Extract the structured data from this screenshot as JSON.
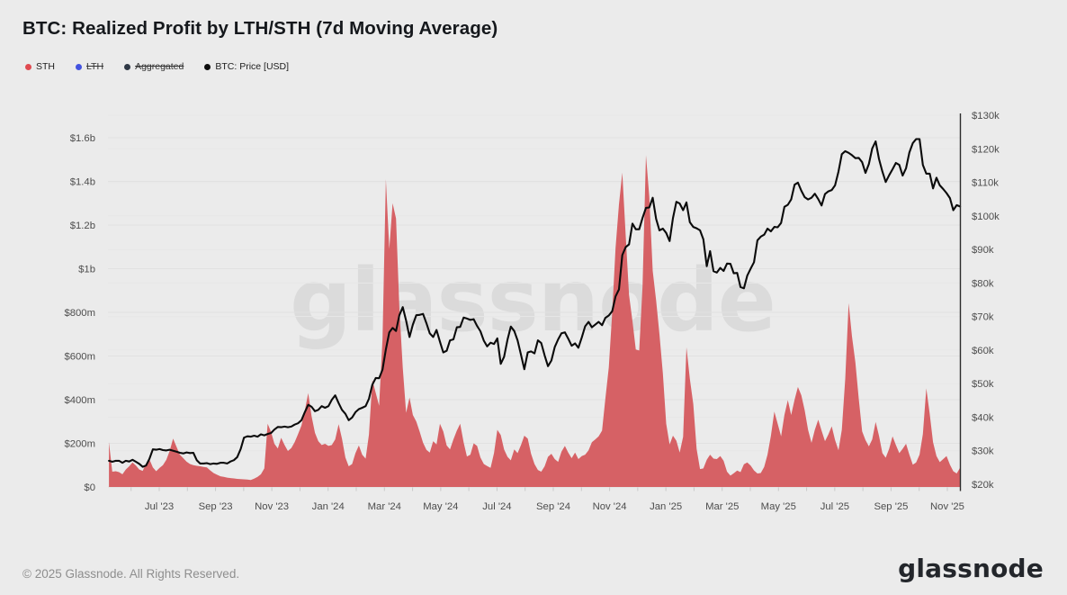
{
  "title": "BTC: Realized Profit by LTH/STH (7d Moving Average)",
  "watermark": "glassnode",
  "legend": {
    "items": [
      {
        "label": "STH",
        "color": "#e04a50",
        "struck": false
      },
      {
        "label": "LTH",
        "color": "#4353e0",
        "struck": true
      },
      {
        "label": "Aggregated",
        "color": "#2f3845",
        "struck": true
      },
      {
        "label": "BTC: Price [USD]",
        "color": "#0d0d0d",
        "struck": false
      }
    ]
  },
  "footer": {
    "copyright": "© 2025 Glassnode. All Rights Reserved.",
    "logo_text": "glassnode"
  },
  "colors": {
    "background": "#ebebeb",
    "sth_fill": "#d66165",
    "price_line": "#0b0b0b",
    "grid_left": "#e1e1e1",
    "grid_right": "#e7e7e7",
    "baseline": "#dcdcdc",
    "tick": "#c9c9c9",
    "axis_text": "#4d4d4d",
    "watermark": "#dbdbdb",
    "right_spine": "#2b2b2b"
  },
  "chart_data": {
    "type": "area",
    "title": "BTC: Realized Profit by LTH/STH (7d Moving Average)",
    "x_unit": "decimal_year",
    "t0": 2023.351,
    "dt": 0.01,
    "x_range": [
      2023.351,
      2025.871
    ],
    "grid": true,
    "legend_position": "top-left",
    "x_ticks": [
      {
        "label": "Jul '23",
        "t": 2023.5
      },
      {
        "label": "Sep '23",
        "t": 2023.6667
      },
      {
        "label": "Nov '23",
        "t": 2023.8333
      },
      {
        "label": "Jan '24",
        "t": 2024.0
      },
      {
        "label": "Mar '24",
        "t": 2024.1667
      },
      {
        "label": "May '24",
        "t": 2024.3333
      },
      {
        "label": "Jul '24",
        "t": 2024.5
      },
      {
        "label": "Sep '24",
        "t": 2024.6667
      },
      {
        "label": "Nov '24",
        "t": 2024.8333
      },
      {
        "label": "Jan '25",
        "t": 2025.0
      },
      {
        "label": "Mar '25",
        "t": 2025.1667
      },
      {
        "label": "May '25",
        "t": 2025.3333
      },
      {
        "label": "Jul '25",
        "t": 2025.5
      },
      {
        "label": "Sep '25",
        "t": 2025.6667
      },
      {
        "label": "Nov '25",
        "t": 2025.8333
      }
    ],
    "left_axis": {
      "unit": "USD millions",
      "ylim": [
        0,
        1711
      ],
      "ticks": [
        {
          "label": "$1.6b",
          "value": 1600
        },
        {
          "label": "$1.4b",
          "value": 1400
        },
        {
          "label": "$1.2b",
          "value": 1200
        },
        {
          "label": "$1b",
          "value": 1000
        },
        {
          "label": "$800m",
          "value": 800
        },
        {
          "label": "$600m",
          "value": 600
        },
        {
          "label": "$400m",
          "value": 400
        },
        {
          "label": "$200m",
          "value": 200
        },
        {
          "label": "$0",
          "value": 0
        }
      ]
    },
    "right_axis": {
      "unit": "USD thousands",
      "ylim": [
        20,
        130.6
      ],
      "ticks": [
        {
          "label": "$130k",
          "value": 130
        },
        {
          "label": "$120k",
          "value": 120
        },
        {
          "label": "$110k",
          "value": 110
        },
        {
          "label": "$100k",
          "value": 100
        },
        {
          "label": "$90k",
          "value": 90
        },
        {
          "label": "$80k",
          "value": 80
        },
        {
          "label": "$70k",
          "value": 70
        },
        {
          "label": "$60k",
          "value": 60
        },
        {
          "label": "$50k",
          "value": 50
        },
        {
          "label": "$40k",
          "value": 40
        },
        {
          "label": "$30k",
          "value": 30
        },
        {
          "label": "$20k",
          "value": 20
        }
      ]
    },
    "series": [
      {
        "name": "STH",
        "kind": "area",
        "axis": "left",
        "color": "#d66165",
        "unit": "USD millions",
        "values": [
          205,
          70,
          72,
          68,
          58,
          80,
          95,
          112,
          98,
          80,
          74,
          108,
          127,
          90,
          72,
          88,
          100,
          125,
          165,
          222,
          185,
          148,
          132,
          116,
          105,
          100,
          97,
          95,
          92,
          90,
          76,
          64,
          56,
          49,
          46,
          43,
          41,
          39,
          37,
          36,
          35,
          34,
          32,
          38,
          46,
          58,
          85,
          290,
          252,
          198,
          176,
          225,
          192,
          165,
          178,
          205,
          242,
          282,
          350,
          430,
          325,
          248,
          210,
          192,
          198,
          188,
          192,
          218,
          288,
          222,
          135,
          95,
          105,
          155,
          190,
          148,
          130,
          240,
          490,
          430,
          372,
          680,
          1410,
          1090,
          1300,
          1230,
          820,
          545,
          340,
          410,
          330,
          300,
          253,
          203,
          170,
          158,
          210,
          195,
          290,
          255,
          190,
          172,
          218,
          258,
          290,
          205,
          140,
          148,
          200,
          188,
          135,
          105,
          96,
          88,
          155,
          262,
          238,
          172,
          138,
          122,
          172,
          155,
          192,
          235,
          222,
          152,
          105,
          78,
          70,
          95,
          138,
          152,
          128,
          115,
          162,
          188,
          158,
          132,
          158,
          128,
          142,
          148,
          168,
          205,
          218,
          232,
          258,
          405,
          548,
          800,
          1095,
          1295,
          1440,
          1150,
          880,
          760,
          630,
          625,
          920,
          1520,
          1330,
          990,
          855,
          700,
          520,
          290,
          195,
          235,
          212,
          158,
          230,
          640,
          495,
          380,
          175,
          82,
          85,
          125,
          148,
          130,
          128,
          142,
          120,
          70,
          52,
          63,
          75,
          68,
          104,
          112,
          98,
          76,
          62,
          64,
          92,
          148,
          235,
          345,
          290,
          232,
          330,
          398,
          330,
          400,
          458,
          420,
          352,
          262,
          202,
          262,
          308,
          258,
          210,
          240,
          278,
          215,
          168,
          262,
          495,
          842,
          690,
          570,
          405,
          255,
          215,
          186,
          218,
          298,
          235,
          155,
          134,
          175,
          232,
          192,
          155,
          175,
          198,
          148,
          102,
          112,
          148,
          242,
          452,
          335,
          205,
          142,
          114,
          128,
          142,
          102,
          72,
          62,
          88
        ]
      },
      {
        "name": "BTC: Price [USD]",
        "kind": "line",
        "axis": "right",
        "color": "#0b0b0b",
        "unit": "USD thousands",
        "values": [
          27.0,
          26.7,
          27.0,
          27.0,
          26.4,
          27.0,
          26.8,
          27.3,
          26.7,
          26.1,
          25.2,
          25.6,
          27.6,
          30.4,
          30.3,
          30.5,
          30.2,
          30.1,
          30.3,
          30.0,
          29.7,
          29.4,
          29.2,
          29.5,
          29.3,
          29.4,
          27.2,
          26.2,
          26.2,
          26.3,
          26.0,
          26.2,
          26.1,
          26.4,
          26.4,
          26.2,
          26.8,
          27.2,
          28.1,
          30.5,
          33.9,
          34.3,
          34.2,
          34.5,
          34.2,
          34.9,
          34.6,
          35.0,
          35.3,
          36.3,
          37.1,
          37.0,
          37.2,
          37.0,
          37.2,
          37.8,
          38.2,
          39.1,
          41.5,
          43.7,
          43.1,
          41.8,
          42.2,
          43.3,
          42.8,
          43.3,
          45.2,
          46.5,
          44.2,
          42.2,
          41.0,
          39.1,
          39.9,
          41.5,
          42.4,
          42.8,
          43.3,
          45.5,
          49.7,
          51.7,
          51.6,
          54.2,
          60.2,
          65.3,
          66.6,
          65.7,
          70.4,
          72.8,
          68.8,
          63.9,
          67.6,
          70.4,
          70.5,
          70.8,
          68.0,
          65.0,
          63.9,
          66.0,
          62.5,
          59.3,
          59.8,
          62.9,
          63.2,
          66.8,
          66.9,
          69.7,
          69.4,
          69.0,
          69.2,
          67.2,
          65.6,
          62.8,
          61.1,
          62.2,
          61.8,
          63.5,
          55.9,
          58.0,
          63.1,
          67.0,
          65.7,
          62.9,
          58.6,
          54.3,
          59.3,
          59.6,
          59.0,
          62.9,
          62.1,
          58.4,
          55.2,
          56.9,
          60.9,
          63.2,
          65.0,
          65.3,
          63.4,
          61.3,
          62.0,
          60.7,
          63.8,
          67.1,
          68.4,
          66.8,
          67.6,
          68.4,
          67.4,
          69.6,
          70.3,
          71.6,
          76.0,
          78.1,
          88.3,
          90.7,
          91.5,
          97.7,
          96.0,
          96.0,
          99.4,
          102.4,
          102.5,
          105.4,
          99.1,
          95.7,
          96.2,
          94.9,
          92.5,
          99.3,
          104.2,
          103.7,
          101.7,
          104.0,
          98.1,
          96.7,
          96.3,
          95.7,
          93.0,
          85.0,
          89.5,
          83.5,
          83.1,
          84.5,
          83.6,
          85.8,
          85.7,
          82.9,
          83.0,
          78.8,
          78.4,
          82.2,
          84.3,
          86.2,
          92.7,
          93.8,
          94.4,
          96.2,
          95.4,
          96.7,
          96.6,
          97.9,
          102.7,
          103.3,
          104.9,
          109.3,
          109.9,
          107.5,
          105.6,
          104.9,
          105.4,
          106.6,
          105.0,
          103.1,
          106.5,
          107.3,
          107.7,
          109.1,
          113.2,
          118.4,
          119.3,
          118.8,
          118.1,
          117.2,
          117.3,
          116.0,
          112.8,
          115.5,
          120.1,
          122.2,
          117.0,
          113.2,
          110.1,
          112.1,
          113.9,
          115.8,
          115.2,
          112.0,
          114.2,
          118.9,
          121.7,
          122.9,
          122.9,
          115.2,
          112.6,
          112.6,
          108.2,
          111.4,
          109.1,
          108.0,
          106.8,
          105.3,
          101.7,
          103.2,
          102.8
        ]
      }
    ]
  }
}
